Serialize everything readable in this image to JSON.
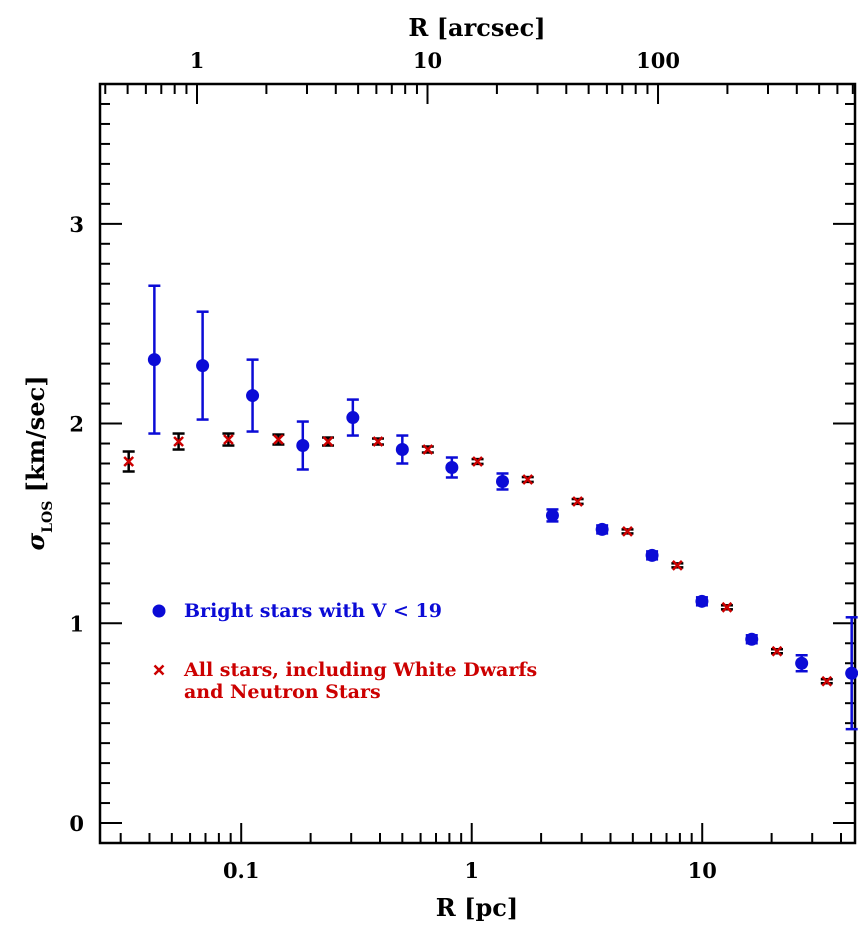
{
  "chart_data": {
    "type": "scatter",
    "xlabel": "R [pc]",
    "ylabel": "σ",
    "ylabel_subscript": "LOS",
    "ylabel_units": " [km/sec]",
    "top_xlabel": "R [arcsec]",
    "x_scale": "log",
    "xlim": [
      0.0244,
      46.0
    ],
    "ylim": [
      -0.1,
      3.7
    ],
    "x_ticklabels": [
      {
        "value": 0.1,
        "label": "0.1"
      },
      {
        "value": 1,
        "label": "1"
      },
      {
        "value": 10,
        "label": "10"
      }
    ],
    "y_ticklabels": [
      {
        "value": 0,
        "label": "0"
      },
      {
        "value": 1,
        "label": "1"
      },
      {
        "value": 2,
        "label": "2"
      },
      {
        "value": 3,
        "label": "3"
      }
    ],
    "top_ticklabels": [
      {
        "pc_value": 0.0643,
        "label": "1"
      },
      {
        "pc_value": 0.643,
        "label": "10"
      },
      {
        "pc_value": 6.43,
        "label": "100"
      }
    ],
    "grid": false,
    "legend_placement": "lower-left",
    "series": [
      {
        "name": "Bright stars with V < 19",
        "color": "#0b0bd6",
        "marker": "circle",
        "points": [
          {
            "x": 0.042,
            "y": 2.32,
            "err": 0.37
          },
          {
            "x": 0.068,
            "y": 2.29,
            "err": 0.27
          },
          {
            "x": 0.112,
            "y": 2.14,
            "err": 0.18
          },
          {
            "x": 0.185,
            "y": 1.89,
            "err": 0.12
          },
          {
            "x": 0.305,
            "y": 2.03,
            "err": 0.09
          },
          {
            "x": 0.5,
            "y": 1.87,
            "err": 0.07
          },
          {
            "x": 0.82,
            "y": 1.78,
            "err": 0.05
          },
          {
            "x": 1.36,
            "y": 1.71,
            "err": 0.04
          },
          {
            "x": 2.24,
            "y": 1.54,
            "err": 0.03
          },
          {
            "x": 3.68,
            "y": 1.47,
            "err": 0.02
          },
          {
            "x": 6.06,
            "y": 1.34,
            "err": 0.02
          },
          {
            "x": 9.97,
            "y": 1.11,
            "err": 0.02
          },
          {
            "x": 16.4,
            "y": 0.92,
            "err": 0.02
          },
          {
            "x": 27.0,
            "y": 0.8,
            "err": 0.04
          },
          {
            "x": 44.5,
            "y": 0.75,
            "err": 0.28
          }
        ]
      },
      {
        "name": "All stars, including White Dwarfs and Neutron Stars",
        "color": "#cc0000",
        "marker": "cross",
        "errcolor": "#000000",
        "points": [
          {
            "x": 0.0325,
            "y": 1.81,
            "err": 0.05
          },
          {
            "x": 0.0535,
            "y": 1.91,
            "err": 0.04
          },
          {
            "x": 0.088,
            "y": 1.92,
            "err": 0.03
          },
          {
            "x": 0.145,
            "y": 1.92,
            "err": 0.025
          },
          {
            "x": 0.238,
            "y": 1.91,
            "err": 0.02
          },
          {
            "x": 0.392,
            "y": 1.91,
            "err": 0.015
          },
          {
            "x": 0.645,
            "y": 1.87,
            "err": 0.015
          },
          {
            "x": 1.06,
            "y": 1.81,
            "err": 0.012
          },
          {
            "x": 1.75,
            "y": 1.72,
            "err": 0.012
          },
          {
            "x": 2.88,
            "y": 1.61,
            "err": 0.012
          },
          {
            "x": 4.74,
            "y": 1.46,
            "err": 0.01
          },
          {
            "x": 7.8,
            "y": 1.29,
            "err": 0.01
          },
          {
            "x": 12.8,
            "y": 1.08,
            "err": 0.01
          },
          {
            "x": 21.1,
            "y": 0.86,
            "err": 0.01
          },
          {
            "x": 34.7,
            "y": 0.71,
            "err": 0.01
          }
        ]
      }
    ],
    "legend": [
      {
        "marker": "circle",
        "color": "#0b0bd6",
        "lines": [
          "Bright stars with V < 19"
        ]
      },
      {
        "marker": "cross",
        "color": "#cc0000",
        "lines": [
          "All stars, including White Dwarfs",
          "and Neutron Stars"
        ]
      }
    ]
  }
}
